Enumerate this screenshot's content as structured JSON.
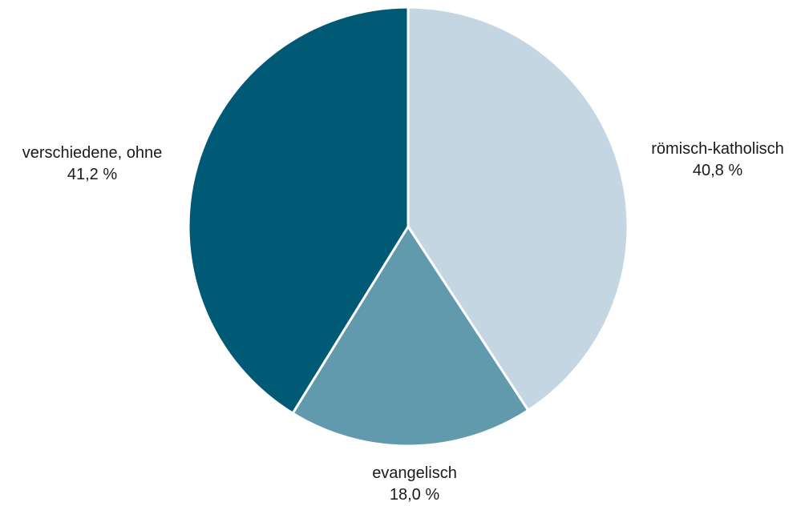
{
  "chart_data": {
    "type": "pie",
    "title": "",
    "slices": [
      {
        "label": "römisch-katholisch",
        "value": 40.8,
        "value_label": "40,8 %",
        "color": "#c3d6e2"
      },
      {
        "label": "evangelisch",
        "value": 18.0,
        "value_label": "18,0 %",
        "color": "#6199ad"
      },
      {
        "label": "verschiedene, ohne",
        "value": 41.2,
        "value_label": "41,2 %",
        "color": "#015a75"
      }
    ],
    "start_angle": "12 o'clock",
    "direction": "clockwise",
    "legend": "none",
    "slice_separator_color": "#ffffff"
  }
}
